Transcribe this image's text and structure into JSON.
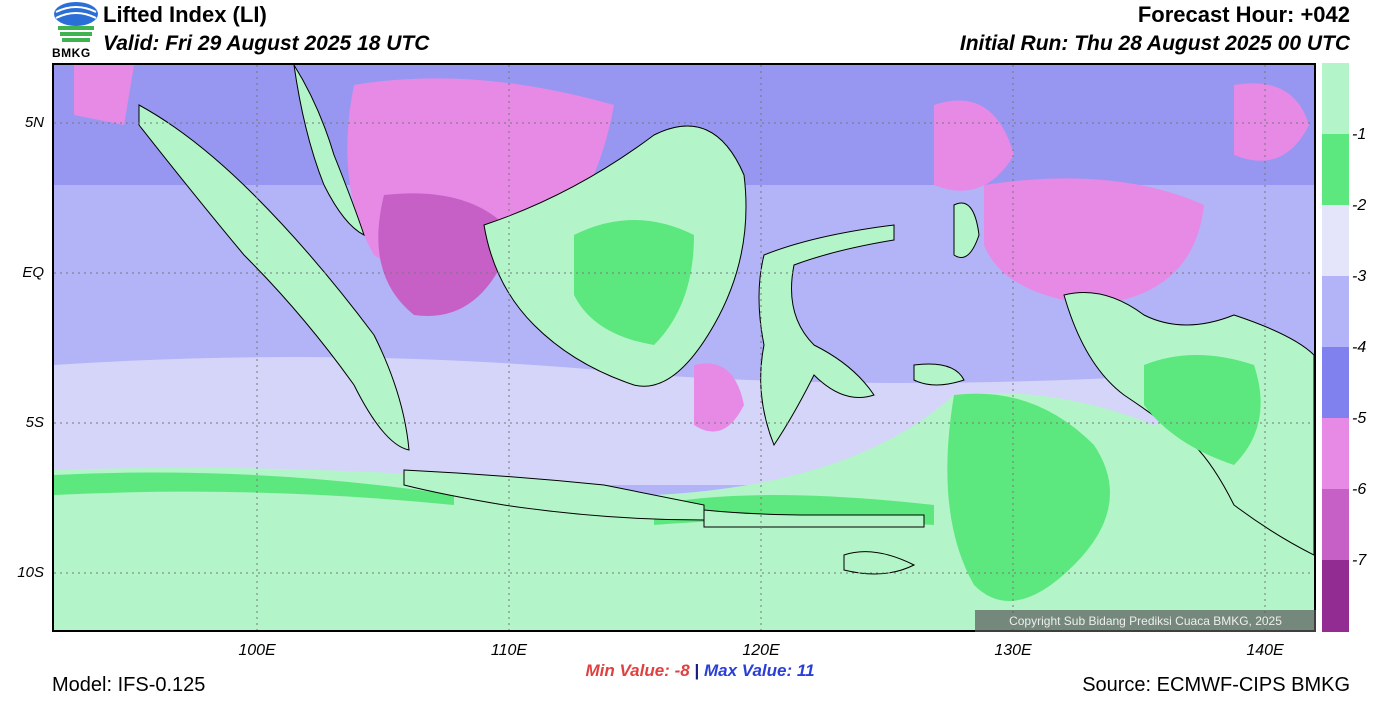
{
  "header": {
    "title": "Lifted Index (LI)",
    "valid": "Valid: Fri 29 August 2025 18 UTC",
    "forecast_hour": "Forecast Hour: +042",
    "initial_run": "Initial Run: Thu 28 August 2025 00 UTC",
    "logo_text": "BMKG"
  },
  "axes": {
    "lat_labels": [
      "5N",
      "EQ",
      "5S",
      "10S"
    ],
    "lon_labels": [
      "100E",
      "110E",
      "120E",
      "130E",
      "140E"
    ]
  },
  "colorbar": {
    "ticks": [
      "-1",
      "-2",
      "-3",
      "-4",
      "-5",
      "-6",
      "-7"
    ],
    "colors": [
      "#b3f5c8",
      "#5ce87e",
      "#e4e4fa",
      "#b3b3f7",
      "#8080ee",
      "#e68ae6",
      "#c660c6",
      "#922c92"
    ]
  },
  "stats": {
    "min_label": "Min Value:",
    "min_value": "-8",
    "separator": "|",
    "max_label": "Max Value:",
    "max_value": "11"
  },
  "footer": {
    "model": "Model: IFS-0.125",
    "source": "Source: ECMWF-CIPS BMKG",
    "copyright": "Copyright Sub Bidang Prediksi Cuaca BMKG, 2025"
  }
}
